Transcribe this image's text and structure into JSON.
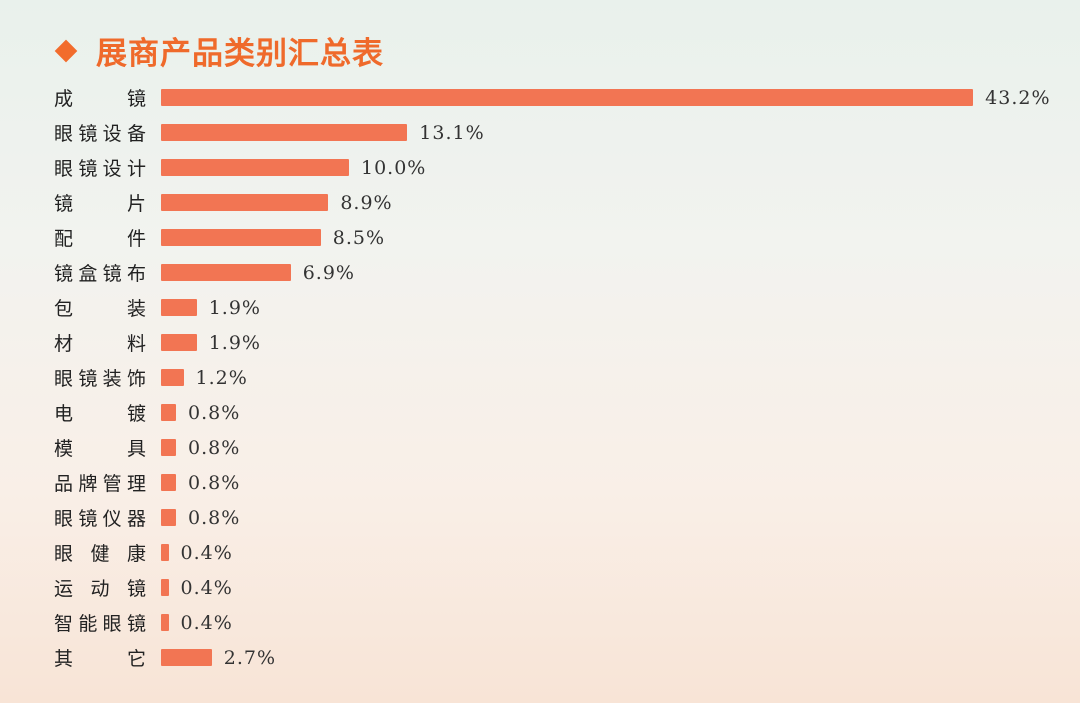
{
  "title": "展商产品类别汇总表",
  "colors": {
    "bar": "#f27553",
    "title": "#ef6a2b"
  },
  "chart_data": {
    "type": "bar",
    "orientation": "horizontal",
    "title": "展商产品类别汇总表",
    "xlabel": "",
    "ylabel": "",
    "unit": "%",
    "grid": false,
    "legend": null,
    "categories": [
      "成镜",
      "眼镜设备",
      "眼镜设计",
      "镜片",
      "配件",
      "镜盒镜布",
      "包装",
      "材料",
      "眼镜装饰",
      "电镀",
      "模具",
      "品牌管理",
      "眼镜仪器",
      "眼健康",
      "运动镜",
      "智能眼镜",
      "其它"
    ],
    "values": [
      43.2,
      13.1,
      10.0,
      8.9,
      8.5,
      6.9,
      1.9,
      1.9,
      1.2,
      0.8,
      0.8,
      0.8,
      0.8,
      0.4,
      0.4,
      0.4,
      2.7
    ],
    "labels": [
      "43.2%",
      "13.1%",
      "10.0%",
      "8.9%",
      "8.5%",
      "6.9%",
      "1.9%",
      "1.9%",
      "1.2%",
      "0.8%",
      "0.8%",
      "0.8%",
      "0.8%",
      "0.4%",
      "0.4%",
      "0.4%",
      "2.7%"
    ],
    "display_labels": [
      [
        "成",
        "镜"
      ],
      [
        "眼",
        "镜",
        "设",
        "备"
      ],
      [
        "眼",
        "镜",
        "设",
        "计"
      ],
      [
        "镜",
        "片"
      ],
      [
        "配",
        "件"
      ],
      [
        "镜",
        "盒",
        "镜",
        "布"
      ],
      [
        "包",
        "装"
      ],
      [
        "材",
        "料"
      ],
      [
        "眼",
        "镜",
        "装",
        "饰"
      ],
      [
        "电",
        "镀"
      ],
      [
        "模",
        "具"
      ],
      [
        "品",
        "牌",
        "管",
        "理"
      ],
      [
        "眼",
        "镜",
        "仪",
        "器"
      ],
      [
        "眼",
        "健",
        "康"
      ],
      [
        "运",
        "动",
        "镜"
      ],
      [
        "智",
        "能",
        "眼",
        "镜"
      ],
      [
        "其",
        "它"
      ]
    ]
  }
}
